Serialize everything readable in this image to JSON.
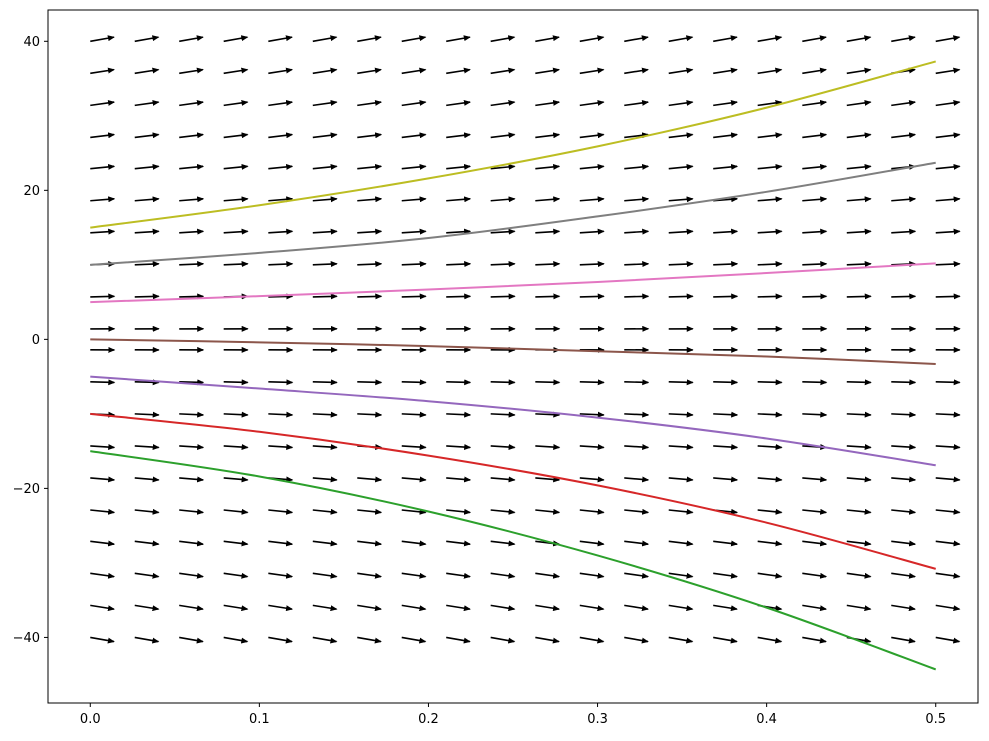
{
  "chart_data": {
    "type": "line",
    "title": "",
    "xlabel": "",
    "ylabel": "",
    "xlim": [
      -0.025,
      0.525
    ],
    "ylim": [
      -48.8,
      44.2
    ],
    "grid": false,
    "x_ticks": [
      0.0,
      0.1,
      0.2,
      0.3,
      0.4,
      0.5
    ],
    "x_tick_labels": [
      "0.0",
      "0.1",
      "0.2",
      "0.3",
      "0.4",
      "0.5"
    ],
    "y_ticks": [
      -40,
      -20,
      0,
      20,
      40
    ],
    "y_tick_labels": [
      "−40",
      "−20",
      "0",
      "20",
      "40"
    ],
    "direction_field": {
      "x": [
        0.0,
        0.0263,
        0.0526,
        0.0789,
        0.1053,
        0.1316,
        0.1579,
        0.1842,
        0.2105,
        0.2368,
        0.2632,
        0.2895,
        0.3158,
        0.3421,
        0.3684,
        0.3947,
        0.4211,
        0.4474,
        0.4737,
        0.5
      ],
      "y": [
        -40,
        -35.7,
        -31.4,
        -27.1,
        -22.9,
        -18.6,
        -14.3,
        -10.0,
        -5.7,
        -1.4,
        1.4,
        5.7,
        10.0,
        14.3,
        18.6,
        22.9,
        27.1,
        31.4,
        35.7,
        40
      ],
      "slope_rule": "dy/dx = y",
      "color": "#000000"
    },
    "series": [
      {
        "color": "#bcbd22",
        "x": [
          0,
          0.1,
          0.2,
          0.3,
          0.4,
          0.5
        ],
        "y": [
          15.0,
          18.0,
          21.6,
          25.9,
          31.1,
          37.3
        ]
      },
      {
        "color": "#7f7f7f",
        "x": [
          0,
          0.1,
          0.2,
          0.3,
          0.4,
          0.5
        ],
        "y": [
          10.0,
          11.6,
          13.6,
          16.5,
          19.8,
          23.7
        ]
      },
      {
        "color": "#e377c2",
        "x": [
          0,
          0.1,
          0.2,
          0.3,
          0.4,
          0.5
        ],
        "y": [
          5.0,
          5.8,
          6.7,
          7.7,
          8.9,
          10.2
        ]
      },
      {
        "color": "#8c564b",
        "x": [
          0,
          0.1,
          0.2,
          0.3,
          0.4,
          0.5
        ],
        "y": [
          0.0,
          -0.4,
          -0.9,
          -1.6,
          -2.3,
          -3.3
        ]
      },
      {
        "color": "#9467bd",
        "x": [
          0,
          0.1,
          0.2,
          0.3,
          0.4,
          0.5
        ],
        "y": [
          -5.0,
          -6.6,
          -8.3,
          -10.5,
          -13.3,
          -16.9
        ]
      },
      {
        "color": "#d62728",
        "x": [
          0,
          0.1,
          0.2,
          0.3,
          0.4,
          0.5
        ],
        "y": [
          -10.0,
          -12.4,
          -15.6,
          -19.6,
          -24.6,
          -30.8
        ]
      },
      {
        "color": "#2ca02c",
        "x": [
          0,
          0.1,
          0.2,
          0.3,
          0.4,
          0.5
        ],
        "y": [
          -15.0,
          -18.4,
          -23.1,
          -29.0,
          -36.0,
          -44.3
        ]
      }
    ]
  }
}
